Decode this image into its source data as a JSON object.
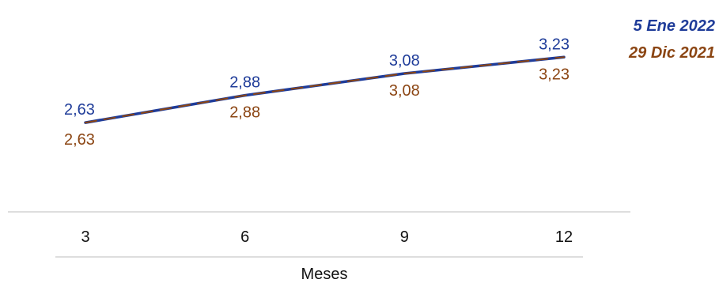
{
  "chart_data": {
    "type": "line",
    "x": [
      3,
      6,
      9,
      12
    ],
    "categories": [
      "3",
      "6",
      "9",
      "12"
    ],
    "xlabel": "Meses",
    "ylabel": "",
    "ylim": [
      2.0,
      3.5
    ],
    "grid": false,
    "legend_position": "right",
    "series": [
      {
        "name": "5 Ene 2022",
        "values": [
          2.63,
          2.88,
          3.08,
          3.23
        ],
        "labels": [
          "2,63",
          "2,88",
          "3,08",
          "3,23"
        ],
        "color": "#1f3c99",
        "line_style": "solid"
      },
      {
        "name": "29 Dic 2021",
        "values": [
          2.63,
          2.88,
          3.08,
          3.23
        ],
        "labels": [
          "2,63",
          "2,88",
          "3,08",
          "3,23"
        ],
        "color": "#8b4513",
        "line_style": "dashed"
      }
    ]
  }
}
